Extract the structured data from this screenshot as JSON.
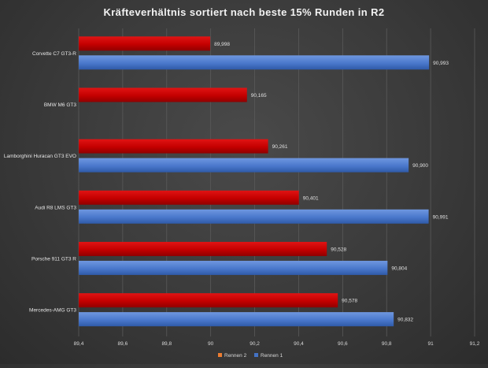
{
  "chart_data": {
    "type": "bar",
    "orientation": "horizontal",
    "title": "Kräfteverhältnis  sortiert  nach beste  15% Runden  in R2",
    "categories": [
      "Corvette C7 GT3-R",
      "BMW M6 GT3",
      "Lamborghini Huracan GT3 EVO",
      "Audi R8 LMS GT3",
      "Porsche 911 GT3 R",
      "Mercedes-AMG GT3"
    ],
    "series": [
      {
        "name": "Rennen 2",
        "color": "#c00000",
        "values": [
          89.998,
          90.165,
          90.261,
          90.401,
          90.528,
          90.578
        ],
        "labels": [
          "89,998",
          "90,165",
          "90,261",
          "90,401",
          "90,528",
          "90,578"
        ]
      },
      {
        "name": "Rennen 1",
        "color": "#4472c4",
        "values": [
          90.993,
          null,
          90.9,
          90.991,
          90.804,
          90.832
        ],
        "labels": [
          "90,993",
          "",
          "90,900",
          "90,991",
          "90,804",
          "90,832"
        ]
      }
    ],
    "xlim": [
      89.4,
      91.2
    ],
    "xticks": [
      89.4,
      89.6,
      89.8,
      90,
      90.2,
      90.4,
      90.6,
      90.8,
      91,
      91.2
    ],
    "xtick_labels": [
      "89,4",
      "89,6",
      "89,8",
      "90",
      "90,2",
      "90,4",
      "90,6",
      "90,8",
      "91",
      "91,2"
    ],
    "legend": {
      "position": "bottom",
      "entries": [
        "Rennen 2",
        "Rennen 1"
      ]
    },
    "grid": true,
    "xlabel": "",
    "ylabel": ""
  }
}
